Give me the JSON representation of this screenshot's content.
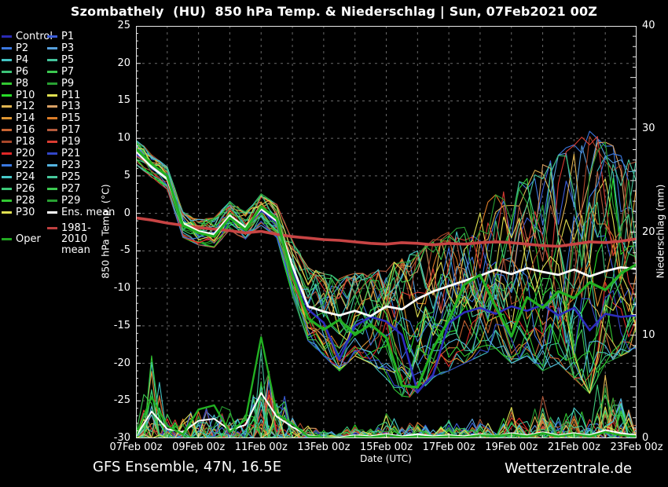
{
  "title": "Szombathely  (HU)  850 hPa Temp. & Niederschlag | Sun, 07Feb2021 00Z",
  "footer_left": "GFS Ensemble, 47N, 16.5E",
  "footer_right": "Wetterzentrale.de",
  "legend": {
    "items": [
      {
        "label": "Control",
        "color": "#2a2ab4"
      },
      {
        "label": "P1",
        "color": "#3b5cd8"
      },
      {
        "label": "P2",
        "color": "#3b78e0"
      },
      {
        "label": "P3",
        "color": "#57a0dd"
      },
      {
        "label": "P4",
        "color": "#43c3c3"
      },
      {
        "label": "P5",
        "color": "#43c39b"
      },
      {
        "label": "P6",
        "color": "#3bc378"
      },
      {
        "label": "P7",
        "color": "#3cc850"
      },
      {
        "label": "P8",
        "color": "#32c832"
      },
      {
        "label": "P9",
        "color": "#28a032"
      },
      {
        "label": "P10",
        "color": "#28dc28"
      },
      {
        "label": "P11",
        "color": "#e0e050"
      },
      {
        "label": "P12",
        "color": "#e0b450"
      },
      {
        "label": "P13",
        "color": "#d9a064"
      },
      {
        "label": "P14",
        "color": "#e09632"
      },
      {
        "label": "P15",
        "color": "#dc7d28"
      },
      {
        "label": "P16",
        "color": "#c86432"
      },
      {
        "label": "P17",
        "color": "#b45a3c"
      },
      {
        "label": "P18",
        "color": "#a84628"
      },
      {
        "label": "P19",
        "color": "#d93c32"
      },
      {
        "label": "P20",
        "color": "#e02828"
      },
      {
        "label": "P21",
        "color": "#3246c8"
      },
      {
        "label": "P22",
        "color": "#3a78e0"
      },
      {
        "label": "P23",
        "color": "#54b4e0"
      },
      {
        "label": "P24",
        "color": "#46c8c8"
      },
      {
        "label": "P25",
        "color": "#46c89b"
      },
      {
        "label": "P26",
        "color": "#3cc878"
      },
      {
        "label": "P27",
        "color": "#3cc850"
      },
      {
        "label": "P28",
        "color": "#32c832"
      },
      {
        "label": "P29",
        "color": "#28a032"
      },
      {
        "label": "P30",
        "color": "#e0e050"
      },
      {
        "label": "Ens. mean",
        "color": "#ffffff"
      },
      {
        "label": "1981-2010 mean",
        "color": "#c04040"
      },
      {
        "label": "Oper",
        "color": "#22a822"
      }
    ]
  },
  "left_axis": {
    "label": "850 hPa Temp. (°C)",
    "ticks": [
      25,
      20,
      15,
      10,
      5,
      0,
      -5,
      -10,
      -15,
      -20,
      -25,
      -30
    ],
    "min": -30,
    "max": 25,
    "grid_step": 5
  },
  "right_axis": {
    "label": "Niederschlag (mm)",
    "ticks": [
      40,
      30,
      20,
      10,
      0
    ],
    "min": 0,
    "max": 40
  },
  "x_axis": {
    "label": "Date (UTC)",
    "tick_labels": [
      "07Feb 00z",
      "09Feb 00z",
      "11Feb 00z",
      "13Feb 00z",
      "15Feb 00z",
      "17Feb 00z",
      "19Feb 00z",
      "21Feb 00z",
      "23Feb 00z"
    ],
    "days": 16
  },
  "chart_data": {
    "type": "line",
    "title": "Szombathely (HU) 850 hPa Temp. & Niederschlag, GFS Ensemble run Sun 07Feb2021 00Z",
    "x_range": [
      "07Feb 00z",
      "23Feb 00z"
    ],
    "points_per_day": 2,
    "temp_ylim": [
      -30,
      25
    ],
    "precip_ylim": [
      0,
      40
    ],
    "grid": true,
    "legend_position": "left",
    "series": {
      "ens_mean_temp": [
        8.3,
        6.2,
        4.6,
        -1.3,
        -2.4,
        -2.8,
        -0.3,
        -1.9,
        0.6,
        -1.0,
        -7.0,
        -12.4,
        -13.1,
        -13.6,
        -13.0,
        -13.7,
        -12.4,
        -12.8,
        -11.4,
        -10.4,
        -9.7,
        -9.0,
        -8.3,
        -7.5,
        -8.1,
        -7.3,
        -7.8,
        -8.2,
        -7.5,
        -8.4,
        -7.7,
        -7.2,
        -7.4
      ],
      "oper_temp": [
        8.6,
        6.6,
        5.0,
        -1.6,
        -2.6,
        -3.1,
        -0.6,
        -2.2,
        0.9,
        -0.7,
        -8.2,
        -14.0,
        -15.5,
        -14.2,
        -16.2,
        -14.8,
        -16.6,
        -23.0,
        -23.2,
        -18.0,
        -14.2,
        -9.5,
        -8.2,
        -12.5,
        -16.4,
        -11.2,
        -12.6,
        -10.4,
        -11.3,
        -9.2,
        -10.2,
        -8.0,
        -6.8
      ],
      "control_temp": [
        8.1,
        6.4,
        4.8,
        -1.4,
        -2.5,
        -2.9,
        -0.4,
        -2.0,
        0.4,
        -1.2,
        -7.6,
        -12.8,
        -14.6,
        -19.5,
        -15.0,
        -13.8,
        -14.4,
        -16.2,
        -23.8,
        -21.5,
        -14.6,
        -13.2,
        -12.6,
        -13.4,
        -12.4,
        -13.0,
        -12.2,
        -13.6,
        -12.6,
        -15.6,
        -13.4,
        -13.8,
        -13.6
      ],
      "clim_mean_temp": [
        -0.6,
        -0.9,
        -1.3,
        -1.6,
        -1.9,
        -2.1,
        -2.3,
        -2.6,
        -2.4,
        -2.8,
        -3.1,
        -3.3,
        -3.5,
        -3.6,
        -3.8,
        -4.0,
        -4.1,
        -3.9,
        -4.0,
        -4.2,
        -4.0,
        -4.1,
        -3.9,
        -3.8,
        -3.9,
        -4.1,
        -4.3,
        -4.4,
        -4.1,
        -3.8,
        -3.9,
        -3.7,
        -3.4
      ],
      "ens_mean_precip": [
        0.2,
        2.6,
        0.9,
        0.6,
        1.7,
        1.9,
        0.8,
        1.3,
        4.4,
        2.1,
        1.1,
        0.3,
        0.1,
        0.1,
        0.3,
        0.2,
        0.4,
        0.2,
        0.4,
        0.2,
        0.3,
        0.2,
        0.4,
        0.2,
        0.5,
        0.3,
        0.6,
        0.3,
        0.5,
        0.3,
        0.8,
        0.5,
        0.3
      ],
      "oper_precip": [
        0.3,
        4.0,
        1.2,
        0.4,
        2.8,
        3.2,
        0.6,
        1.8,
        9.8,
        2.4,
        1.4,
        0.2,
        0.1,
        0.0,
        0.2,
        0.1,
        0.3,
        0.1,
        0.2,
        0.1,
        0.2,
        0.1,
        0.3,
        0.2,
        0.4,
        0.2,
        0.5,
        0.2,
        0.4,
        0.2,
        0.6,
        0.3,
        0.2
      ]
    },
    "series_colors": {
      "ens_mean": "#ffffff",
      "oper": "#22b022",
      "control": "#2d2dbe",
      "clim_mean": "#c84444"
    },
    "members": {
      "count": 30,
      "seed": 11,
      "temp_envelope_low": [
        6.5,
        4.8,
        3.2,
        -3.2,
        -4.2,
        -4.6,
        -2.2,
        -3.6,
        -1.6,
        -3.2,
        -11.0,
        -17.0,
        -19.0,
        -21.0,
        -19.0,
        -20.0,
        -22.0,
        -25.0,
        -24.0,
        -22.0,
        -21.0,
        -20.0,
        -19.0,
        -18.0,
        -20.0,
        -19.0,
        -21.0,
        -20.0,
        -22.0,
        -24.0,
        -20.0,
        -19.0,
        -18.0
      ],
      "temp_envelope_high": [
        10.2,
        7.8,
        6.2,
        0.2,
        -0.8,
        -0.6,
        1.6,
        0.2,
        2.6,
        1.2,
        -3.5,
        -7.2,
        -8.0,
        -8.5,
        -8.0,
        -8.0,
        -7.0,
        -6.0,
        -5.0,
        -3.5,
        -2.5,
        -1.5,
        0.5,
        2.5,
        3.5,
        5.0,
        6.5,
        8.0,
        9.5,
        11.0,
        9.5,
        8.5,
        8.0
      ],
      "precip_envelope_high": [
        0.8,
        9.5,
        3.0,
        2.2,
        5.2,
        5.0,
        3.0,
        4.2,
        10.5,
        6.0,
        4.0,
        1.5,
        0.8,
        0.8,
        2.0,
        1.0,
        3.0,
        1.5,
        2.0,
        1.2,
        2.2,
        1.5,
        2.5,
        1.2,
        4.0,
        2.0,
        5.0,
        2.5,
        4.2,
        2.0,
        9.8,
        5.5,
        2.2
      ]
    }
  },
  "style": {
    "grid_color": "#6a6a6a",
    "axis_color": "#e8e8e8",
    "background": "#000000"
  }
}
